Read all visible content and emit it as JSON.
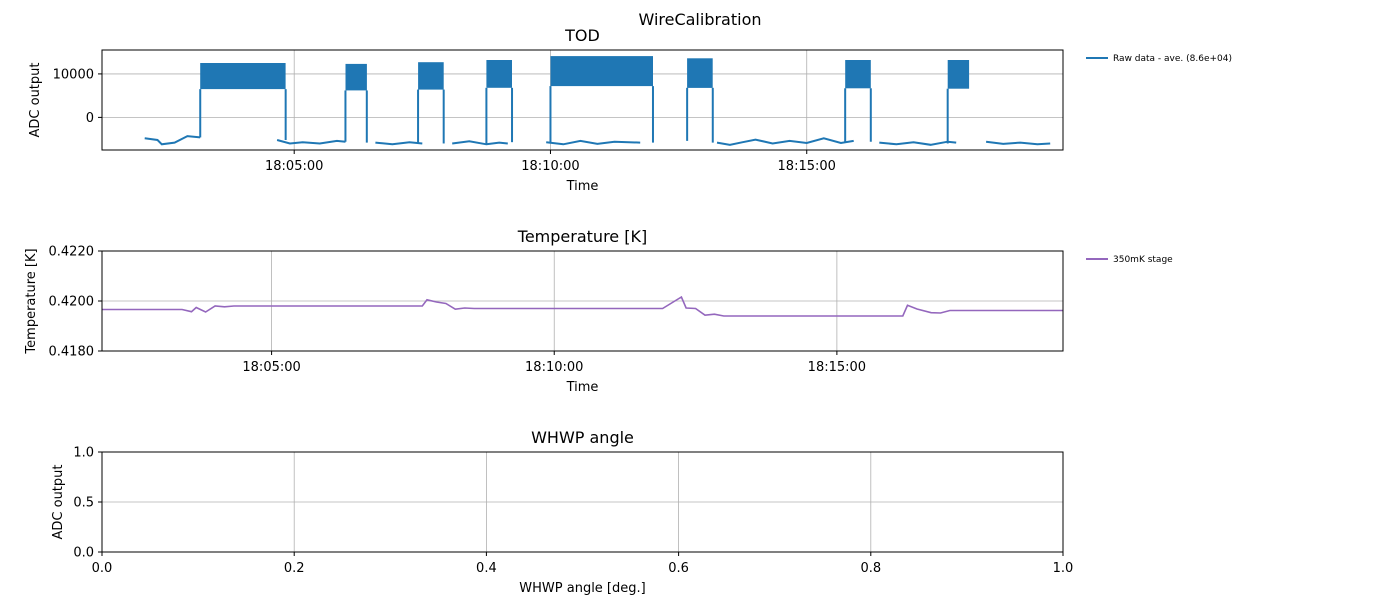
{
  "figure": {
    "suptitle": "WireCalibration"
  },
  "chart_data": [
    {
      "type": "line",
      "title": "TOD",
      "xlabel": "Time",
      "ylabel": "ADC output",
      "xlim": [
        "18:01:15",
        "18:20:00"
      ],
      "ylim": [
        -7500,
        15500
      ],
      "xticks": [
        "18:05:00",
        "18:10:00",
        "18:15:00"
      ],
      "yticks": [
        0,
        10000
      ],
      "ytick_labels": [
        "0",
        "10000"
      ],
      "grid": true,
      "legend_position": "outside-top-right",
      "series": [
        {
          "name": "Raw data - ave. (8.6e+04)",
          "color": "#1f77b4",
          "style": "dense-oscillation",
          "baseline_segments": [
            {
              "t": [
                "18:02:05",
                "18:02:20",
                "18:02:25",
                "18:02:40",
                "18:02:55",
                "18:03:10"
              ],
              "y": [
                -4800,
                -5200,
                -6200,
                -5800,
                -4300,
                -4600
              ]
            },
            {
              "t": [
                "18:04:40",
                "18:04:55",
                "18:05:10",
                "18:05:30",
                "18:05:50",
                "18:06:00"
              ],
              "y": [
                -5200,
                -6000,
                -5700,
                -6000,
                -5400,
                -5600
              ]
            },
            {
              "t": [
                "18:06:35",
                "18:06:55",
                "18:07:15",
                "18:07:30"
              ],
              "y": [
                -5800,
                -6200,
                -5700,
                -6000
              ]
            },
            {
              "t": [
                "18:08:05",
                "18:08:25",
                "18:08:45",
                "18:09:00",
                "18:09:10"
              ],
              "y": [
                -6000,
                -5500,
                -6200,
                -5800,
                -6000
              ]
            },
            {
              "t": [
                "18:09:55",
                "18:10:15",
                "18:10:35",
                "18:10:55",
                "18:11:15",
                "18:11:45"
              ],
              "y": [
                -5700,
                -6200,
                -5400,
                -6100,
                -5600,
                -5800
              ]
            },
            {
              "t": [
                "18:13:15",
                "18:13:30",
                "18:13:45",
                "18:14:00",
                "18:14:20",
                "18:14:40",
                "18:15:00",
                "18:15:20",
                "18:15:40",
                "18:15:55"
              ],
              "y": [
                -5800,
                -6300,
                -5700,
                -5100,
                -6000,
                -5400,
                -5900,
                -4800,
                -5900,
                -5400
              ]
            },
            {
              "t": [
                "18:16:25",
                "18:16:45",
                "18:17:05",
                "18:17:25",
                "18:17:45",
                "18:17:55"
              ],
              "y": [
                -5800,
                -6200,
                -5700,
                -6300,
                -5600,
                -5800
              ]
            },
            {
              "t": [
                "18:18:30",
                "18:18:50",
                "18:19:10",
                "18:19:30",
                "18:19:45"
              ],
              "y": [
                -5600,
                -6100,
                -5800,
                -6200,
                -6000
              ]
            }
          ],
          "active_blocks": [
            {
              "start": "18:03:10",
              "end": "18:04:50",
              "low": 6500,
              "high": 12500
            },
            {
              "start": "18:06:00",
              "end": "18:06:25",
              "low": 6200,
              "high": 12300
            },
            {
              "start": "18:07:25",
              "end": "18:07:55",
              "low": 6400,
              "high": 12700
            },
            {
              "start": "18:08:45",
              "end": "18:09:15",
              "low": 6800,
              "high": 13200
            },
            {
              "start": "18:10:00",
              "end": "18:12:00",
              "low": 7200,
              "high": 14100
            },
            {
              "start": "18:12:40",
              "end": "18:13:10",
              "low": 6800,
              "high": 13600
            },
            {
              "start": "18:15:45",
              "end": "18:16:15",
              "low": 6700,
              "high": 13200
            },
            {
              "start": "18:17:45",
              "end": "18:18:10",
              "low": 6600,
              "high": 13200
            }
          ]
        }
      ]
    },
    {
      "type": "line",
      "title": "Temperature [K]",
      "xlabel": "Time",
      "ylabel": "Temperature [K]",
      "xlim": [
        "18:02:00",
        "18:19:00"
      ],
      "ylim": [
        0.418,
        0.422
      ],
      "xticks": [
        "18:05:00",
        "18:10:00",
        "18:15:00"
      ],
      "yticks": [
        0.418,
        0.42,
        0.422
      ],
      "ytick_labels": [
        "0.4180",
        "0.4200",
        "0.4220"
      ],
      "grid": true,
      "legend_position": "outside-top-right",
      "series": [
        {
          "name": "350mK stage",
          "color": "#9467bd",
          "t": [
            "18:02:00",
            "18:03:25",
            "18:03:35",
            "18:03:40",
            "18:03:50",
            "18:04:00",
            "18:04:10",
            "18:04:20",
            "18:07:40",
            "18:07:45",
            "18:07:55",
            "18:08:05",
            "18:08:15",
            "18:08:25",
            "18:08:35",
            "18:11:55",
            "18:12:15",
            "18:12:20",
            "18:12:30",
            "18:12:40",
            "18:12:50",
            "18:13:00",
            "18:16:10",
            "18:16:15",
            "18:16:25",
            "18:16:40",
            "18:16:50",
            "18:17:00",
            "18:19:00"
          ],
          "y": [
            0.41966,
            0.41966,
            0.41957,
            0.41974,
            0.41956,
            0.4198,
            0.41977,
            0.4198,
            0.4198,
            0.42005,
            0.41996,
            0.4199,
            0.41967,
            0.41972,
            0.4197,
            0.4197,
            0.42016,
            0.41972,
            0.4197,
            0.41943,
            0.41947,
            0.4194,
            0.4194,
            0.41983,
            0.41968,
            0.41953,
            0.41952,
            0.41962,
            0.41962
          ]
        }
      ]
    },
    {
      "type": "line",
      "title": "WHWP angle",
      "xlabel": "WHWP angle [deg.]",
      "ylabel": "ADC output",
      "xlim": [
        0,
        1
      ],
      "ylim": [
        0,
        1
      ],
      "xticks": [
        0,
        0.2,
        0.4,
        0.6,
        0.8,
        1.0
      ],
      "xtick_labels": [
        "0.0",
        "0.2",
        "0.4",
        "0.6",
        "0.8",
        "1.0"
      ],
      "yticks": [
        0,
        0.5,
        1.0
      ],
      "ytick_labels": [
        "0.0",
        "0.5",
        "1.0"
      ],
      "grid": true,
      "series": []
    }
  ]
}
